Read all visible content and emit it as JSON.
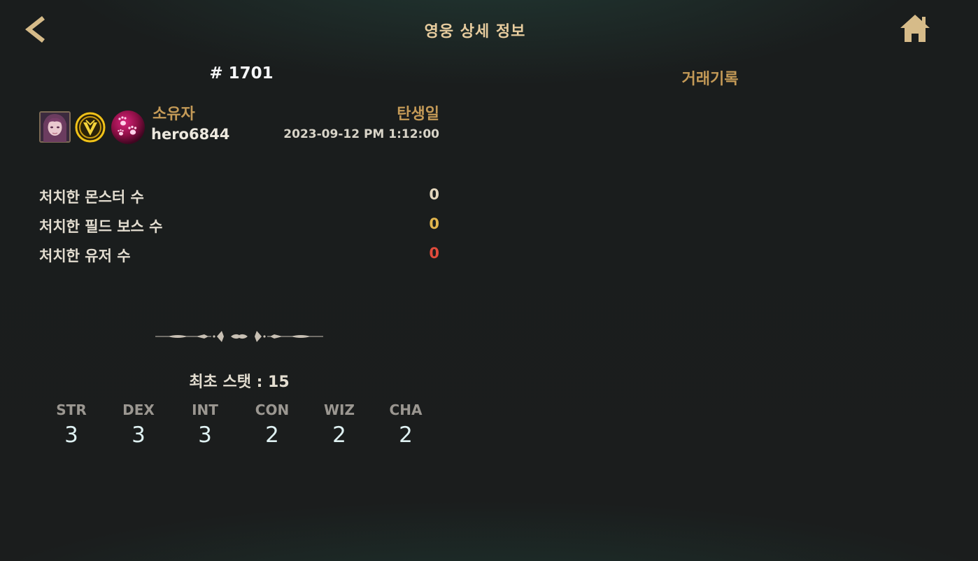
{
  "header": {
    "title": "영웅 상세 정보",
    "back_icon": "back-chevron-icon",
    "home_icon": "home-icon"
  },
  "hero": {
    "number": "# 1701",
    "owner_label": "소유자",
    "owner_name": "hero6844",
    "birth_label": "탄생일",
    "birth_date": "2023-09-12 PM 1:12:00"
  },
  "trade": {
    "title": "거래기록"
  },
  "kills": [
    {
      "label": "처치한 몬스터 수",
      "value": "0",
      "color": "#e3d6bd"
    },
    {
      "label": "처치한 필드 보스 수",
      "value": "0",
      "color": "#e2b64e"
    },
    {
      "label": "처치한 유저 수",
      "value": "0",
      "color": "#e04b3c"
    }
  ],
  "initial_stat": "최초 스탯 : 15",
  "stats": [
    {
      "name": "STR",
      "value": "3"
    },
    {
      "name": "DEX",
      "value": "3"
    },
    {
      "name": "INT",
      "value": "3"
    },
    {
      "name": "CON",
      "value": "2"
    },
    {
      "name": "WIZ",
      "value": "2"
    },
    {
      "name": "CHA",
      "value": "2"
    }
  ],
  "colors": {
    "gold": "#c49a57",
    "title_gold": "#e7cc9e",
    "boss_yellow": "#e2b64e",
    "user_red": "#e04b3c"
  }
}
